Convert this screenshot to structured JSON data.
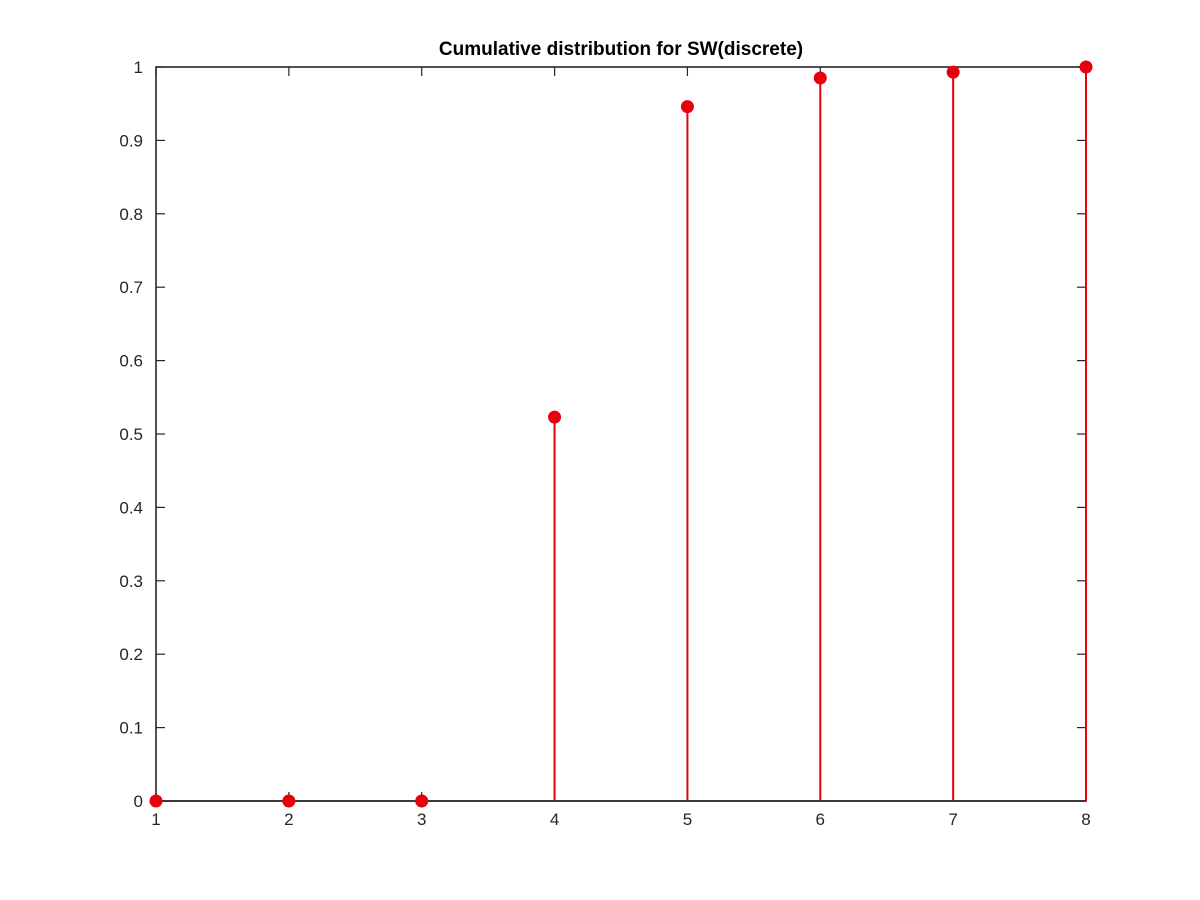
{
  "chart_data": {
    "type": "stem",
    "title": "Cumulative distribution for SW(discrete)",
    "xlabel": "",
    "ylabel": "",
    "xlim": [
      1,
      8
    ],
    "ylim": [
      0,
      1
    ],
    "x": [
      1,
      2,
      3,
      4,
      5,
      6,
      7,
      8
    ],
    "xticks": [
      "1",
      "2",
      "3",
      "4",
      "5",
      "6",
      "7",
      "8"
    ],
    "yticks": [
      "0",
      "0.1",
      "0.2",
      "0.3",
      "0.4",
      "0.5",
      "0.6",
      "0.7",
      "0.8",
      "0.9",
      "1"
    ],
    "series": [
      {
        "values": [
          0,
          0,
          0,
          0.523,
          0.946,
          0.985,
          0.993,
          1.0
        ]
      }
    ],
    "color": "#e8000b",
    "grid": false,
    "box": true
  }
}
